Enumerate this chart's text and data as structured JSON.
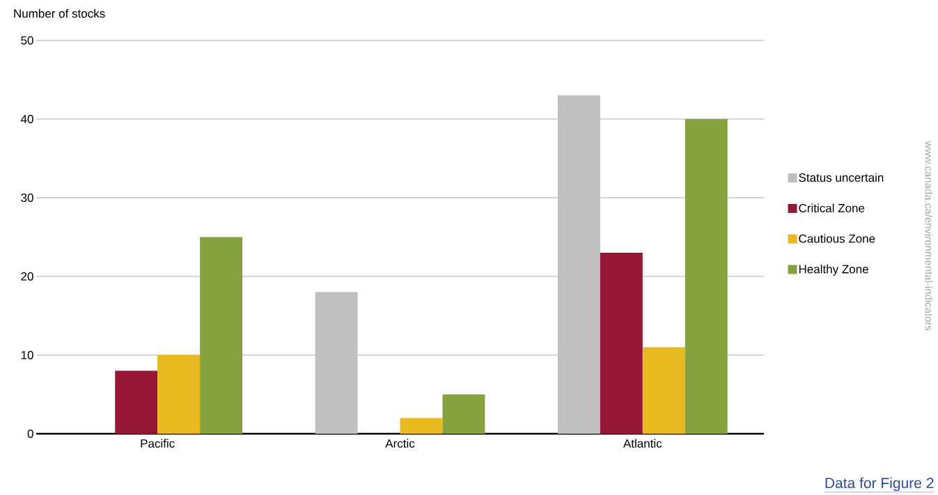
{
  "chart_data": {
    "type": "bar",
    "ylabel": "Number of stocks",
    "categories": [
      "Pacific",
      "Arctic",
      "Atlantic"
    ],
    "series": [
      {
        "name": "Status uncertain",
        "color": "#bfbfbf",
        "values": [
          0,
          18,
          43
        ]
      },
      {
        "name": "Critical Zone",
        "color": "#951734",
        "values": [
          8,
          0,
          23
        ]
      },
      {
        "name": "Cautious Zone",
        "color": "#e8b920",
        "values": [
          10,
          2,
          11
        ]
      },
      {
        "name": "Healthy Zone",
        "color": "#85a140",
        "values": [
          25,
          5,
          40
        ]
      }
    ],
    "ylim": [
      0,
      50
    ],
    "yticks": [
      0,
      10,
      20,
      30,
      40,
      50
    ],
    "grid": "y",
    "legend": "right",
    "annotations": [
      "www.canada.ca/environmental-indicators",
      "Data for Figure 2"
    ]
  }
}
